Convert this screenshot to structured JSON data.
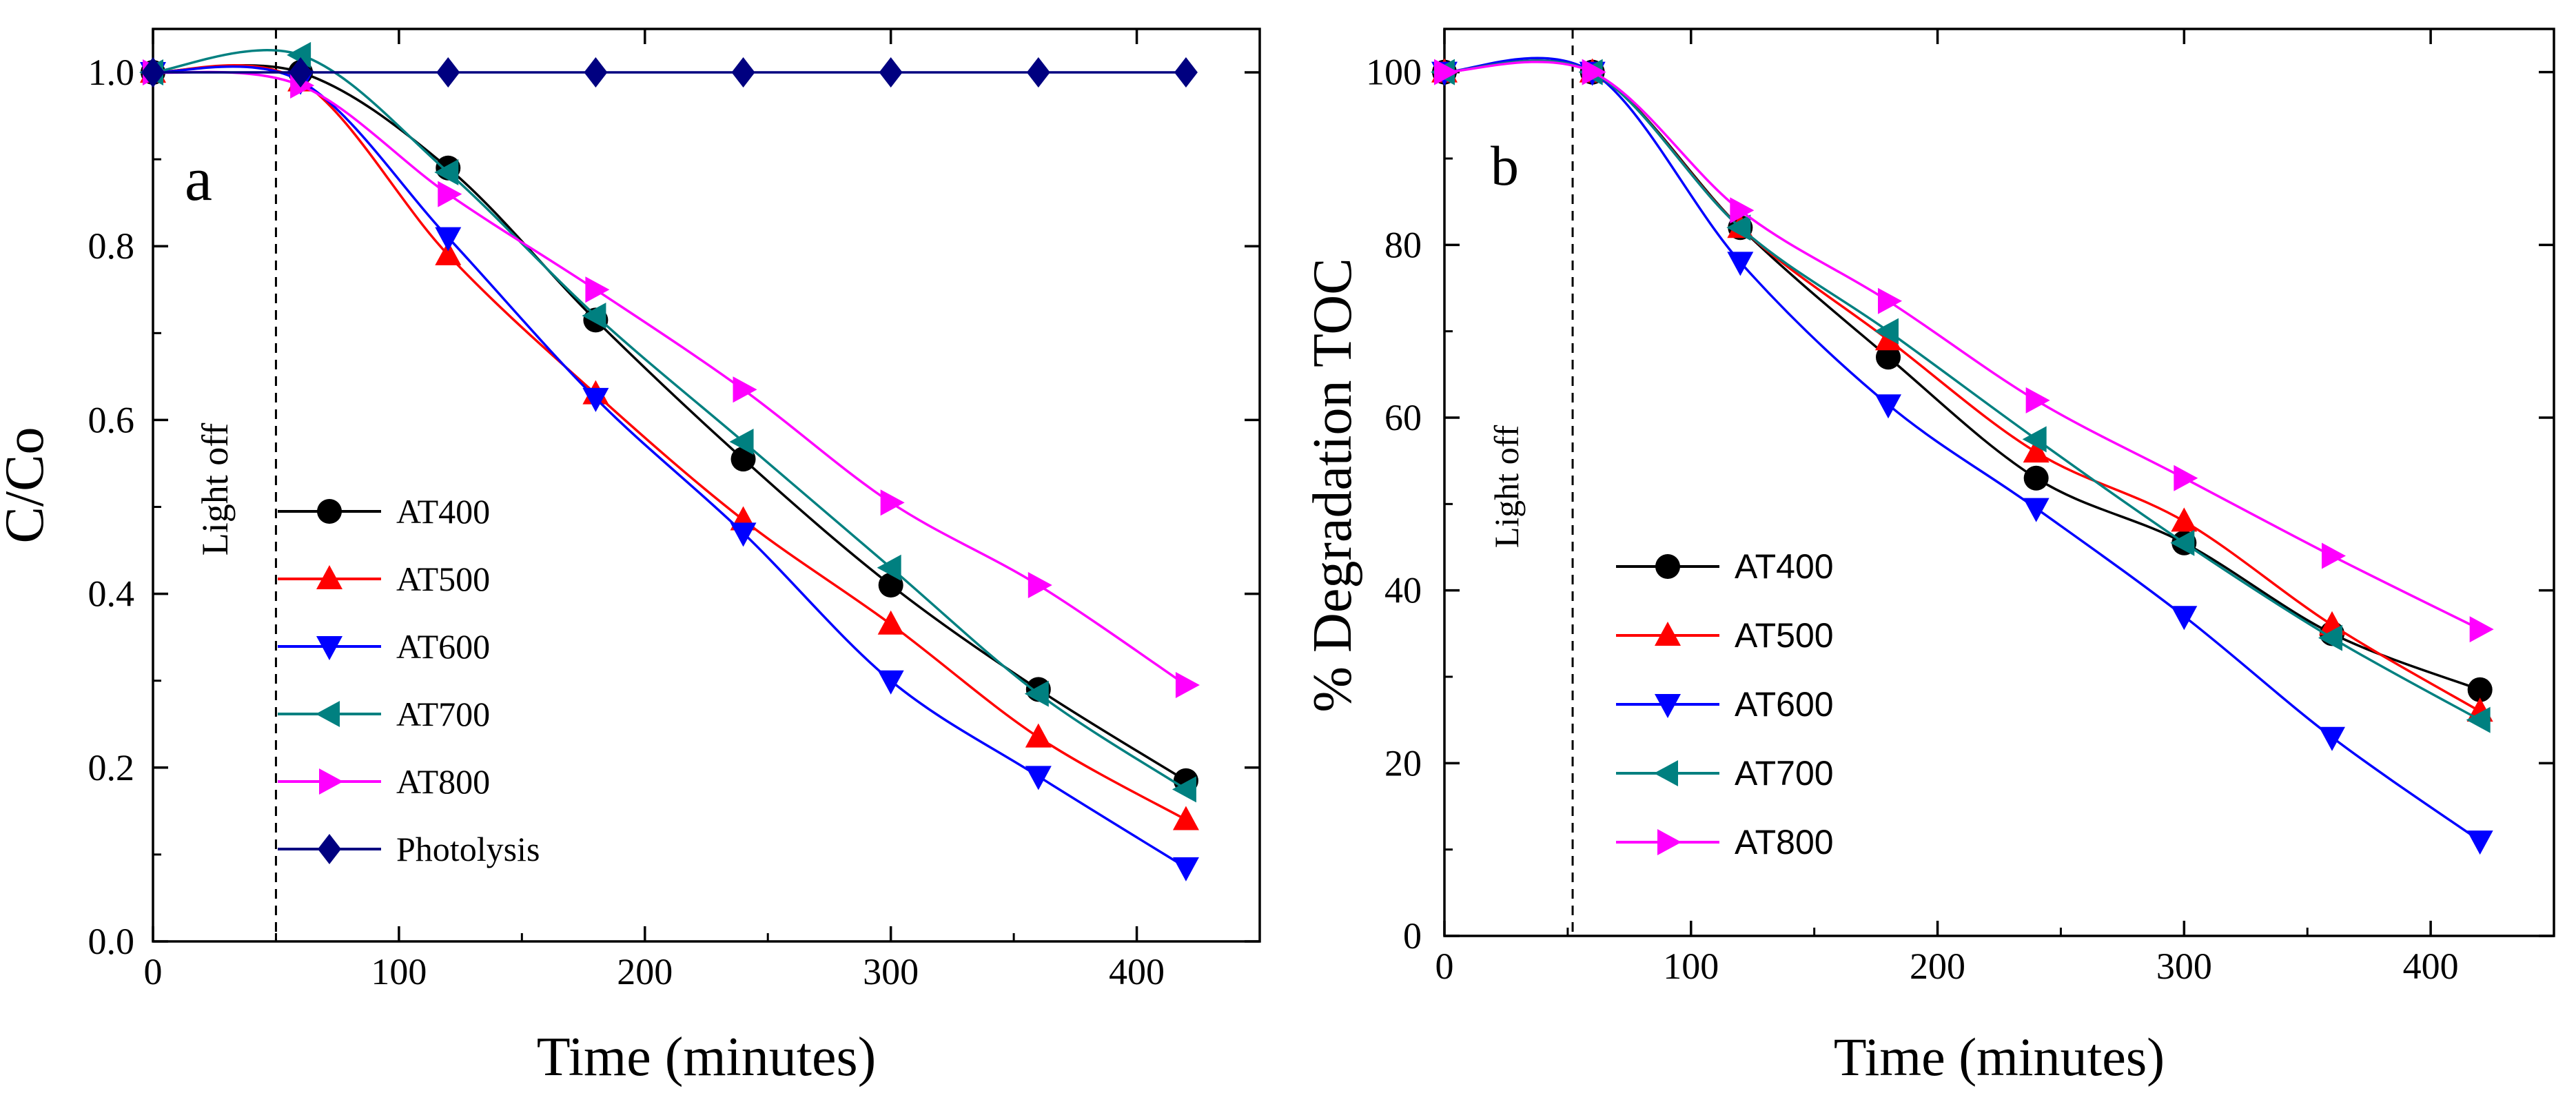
{
  "chart_data": [
    {
      "type": "line",
      "panel_label": "a",
      "title": "",
      "xlabel": "Time (minutes)",
      "ylabel": "C/Co",
      "xlim": [
        0,
        450
      ],
      "ylim": [
        0,
        1.05
      ],
      "xticks": [
        0,
        100,
        200,
        300,
        400
      ],
      "xtick_labels": [
        "0",
        "100",
        "200",
        "300",
        "400"
      ],
      "yticks": [
        0,
        0.2,
        0.4,
        0.6,
        0.8,
        1.0
      ],
      "ytick_labels": [
        "0.0",
        "0.2",
        "0.4",
        "0.6",
        "0.8",
        "1.0"
      ],
      "grid": false,
      "legend_position": "center-left",
      "annotation": {
        "text": "Light off",
        "x": 50
      },
      "x": [
        0,
        60,
        120,
        180,
        240,
        300,
        360,
        420
      ],
      "series": [
        {
          "name": "AT400",
          "color": "#000000",
          "marker": "circle",
          "values": [
            1.0,
            1.0,
            0.89,
            0.715,
            0.555,
            0.41,
            0.29,
            0.185
          ]
        },
        {
          "name": "AT500",
          "color": "#ff0000",
          "marker": "triangle-up",
          "values": [
            1.0,
            0.99,
            0.79,
            0.63,
            0.485,
            0.365,
            0.235,
            0.14
          ]
        },
        {
          "name": "AT600",
          "color": "#0000ff",
          "marker": "triangle-down",
          "values": [
            1.0,
            0.99,
            0.81,
            0.625,
            0.47,
            0.3,
            0.19,
            0.085
          ]
        },
        {
          "name": "AT700",
          "color": "#008080",
          "marker": "triangle-left",
          "values": [
            1.0,
            1.02,
            0.885,
            0.72,
            0.575,
            0.43,
            0.285,
            0.175
          ]
        },
        {
          "name": "AT800",
          "color": "#ff00ff",
          "marker": "triangle-right",
          "values": [
            1.0,
            0.985,
            0.86,
            0.75,
            0.635,
            0.505,
            0.41,
            0.295
          ]
        },
        {
          "name": "Photolysis",
          "color": "#000080",
          "marker": "diamond",
          "values": [
            1.0,
            1.0,
            1.0,
            1.0,
            1.0,
            1.0,
            1.0,
            1.0
          ]
        }
      ]
    },
    {
      "type": "line",
      "panel_label": "b",
      "title": "",
      "xlabel": "Time (minutes)",
      "ylabel": "% Degradation TOC",
      "xlim": [
        0,
        450
      ],
      "ylim": [
        0,
        105
      ],
      "xticks": [
        0,
        100,
        200,
        300,
        400
      ],
      "xtick_labels": [
        "0",
        "100",
        "200",
        "300",
        "400"
      ],
      "yticks": [
        0,
        20,
        40,
        60,
        80,
        100
      ],
      "ytick_labels": [
        "0",
        "20",
        "40",
        "60",
        "80",
        "100"
      ],
      "grid": false,
      "legend_position": "center-left",
      "annotation": {
        "text": "Light off",
        "x": 52
      },
      "x": [
        0,
        60,
        120,
        180,
        240,
        300,
        360,
        420
      ],
      "series": [
        {
          "name": "AT400",
          "color": "#000000",
          "marker": "circle",
          "values": [
            100,
            100,
            82,
            67,
            53,
            45.5,
            35,
            28.5
          ]
        },
        {
          "name": "AT500",
          "color": "#ff0000",
          "marker": "triangle-up",
          "values": [
            100,
            100,
            82,
            69,
            56,
            48,
            36,
            26
          ]
        },
        {
          "name": "AT600",
          "color": "#0000ff",
          "marker": "triangle-down",
          "values": [
            100,
            100,
            78,
            61.5,
            49.5,
            37,
            23,
            11
          ]
        },
        {
          "name": "AT700",
          "color": "#008080",
          "marker": "triangle-left",
          "values": [
            100,
            100,
            82,
            70,
            57.5,
            45.5,
            34.5,
            25
          ]
        },
        {
          "name": "AT800",
          "color": "#ff00ff",
          "marker": "triangle-right",
          "values": [
            100,
            100,
            84,
            73.5,
            62,
            53,
            44,
            35.5
          ]
        }
      ]
    }
  ]
}
